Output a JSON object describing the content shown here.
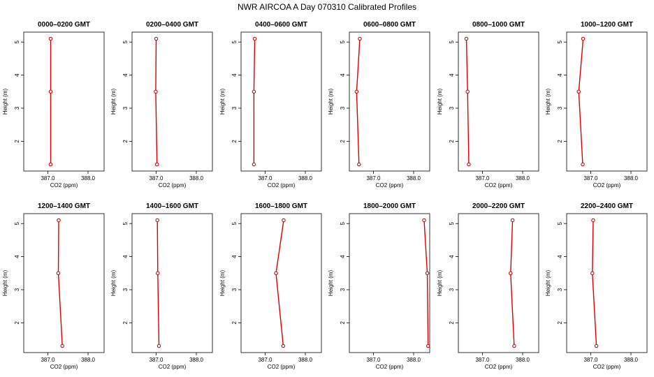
{
  "figure": {
    "title": "NWR AIRCOA A  Day 070310  Calibrated Profiles"
  },
  "chart_data": [
    {
      "type": "line",
      "title": "0000–0200 GMT",
      "xlabel": "CO2 (ppm)",
      "ylabel": "Height (m)",
      "xlim": [
        386.4,
        388.4
      ],
      "ylim": [
        1.1,
        5.3
      ],
      "xticks": [
        "387.0",
        "388.0"
      ],
      "yticks": [
        "2",
        "3",
        "4",
        "5"
      ],
      "grid": false,
      "series": [
        {
          "x": [
            387.07,
            387.07,
            387.07
          ],
          "y": [
            1.3,
            3.5,
            5.1
          ]
        }
      ]
    },
    {
      "type": "line",
      "title": "0200–0400 GMT",
      "xlabel": "CO2 (ppm)",
      "ylabel": "Height (m)",
      "xlim": [
        386.4,
        388.4
      ],
      "ylim": [
        1.1,
        5.3
      ],
      "xticks": [
        "387.0",
        "388.0"
      ],
      "yticks": [
        "2",
        "3",
        "4",
        "5"
      ],
      "grid": false,
      "series": [
        {
          "x": [
            387.02,
            386.99,
            387.0
          ],
          "y": [
            1.3,
            3.5,
            5.1
          ]
        }
      ]
    },
    {
      "type": "line",
      "title": "0400–0600 GMT",
      "xlabel": "CO2 (ppm)",
      "ylabel": "Height (m)",
      "xlim": [
        386.4,
        388.4
      ],
      "ylim": [
        1.1,
        5.3
      ],
      "xticks": [
        "387.0",
        "388.0"
      ],
      "yticks": [
        "2",
        "3",
        "4",
        "5"
      ],
      "grid": false,
      "series": [
        {
          "x": [
            386.72,
            386.72,
            386.74
          ],
          "y": [
            1.3,
            3.5,
            5.1
          ]
        }
      ]
    },
    {
      "type": "line",
      "title": "0600–0800 GMT",
      "xlabel": "CO2 (ppm)",
      "ylabel": "Height (m)",
      "xlim": [
        386.4,
        388.4
      ],
      "ylim": [
        1.1,
        5.3
      ],
      "xticks": [
        "387.0",
        "388.0"
      ],
      "yticks": [
        "2",
        "3",
        "4",
        "5"
      ],
      "grid": false,
      "series": [
        {
          "x": [
            386.64,
            386.58,
            386.66
          ],
          "y": [
            1.3,
            3.5,
            5.1
          ]
        }
      ]
    },
    {
      "type": "line",
      "title": "0800–1000 GMT",
      "xlabel": "CO2 (ppm)",
      "ylabel": "Height (m)",
      "xlim": [
        386.4,
        388.4
      ],
      "ylim": [
        1.1,
        5.3
      ],
      "xticks": [
        "387.0",
        "388.0"
      ],
      "yticks": [
        "2",
        "3",
        "4",
        "5"
      ],
      "grid": false,
      "series": [
        {
          "x": [
            386.66,
            386.63,
            386.6
          ],
          "y": [
            1.3,
            3.5,
            5.1
          ]
        }
      ]
    },
    {
      "type": "line",
      "title": "1000–1200 GMT",
      "xlabel": "CO2 (ppm)",
      "ylabel": "Height (m)",
      "xlim": [
        386.4,
        388.4
      ],
      "ylim": [
        1.1,
        5.3
      ],
      "xticks": [
        "387.0",
        "388.0"
      ],
      "yticks": [
        "2",
        "3",
        "4",
        "5"
      ],
      "grid": false,
      "series": [
        {
          "x": [
            386.8,
            386.7,
            386.81
          ],
          "y": [
            1.3,
            3.5,
            5.1
          ]
        }
      ]
    },
    {
      "type": "line",
      "title": "1200–1400 GMT",
      "xlabel": "CO2 (ppm)",
      "ylabel": "Height (m)",
      "xlim": [
        386.4,
        388.4
      ],
      "ylim": [
        1.1,
        5.3
      ],
      "xticks": [
        "387.0",
        "388.0"
      ],
      "yticks": [
        "2",
        "3",
        "4",
        "5"
      ],
      "grid": false,
      "series": [
        {
          "x": [
            387.36,
            387.26,
            387.27
          ],
          "y": [
            1.3,
            3.5,
            5.1
          ]
        }
      ]
    },
    {
      "type": "line",
      "title": "1400–1600 GMT",
      "xlabel": "CO2 (ppm)",
      "ylabel": "Height (m)",
      "xlim": [
        386.4,
        388.4
      ],
      "ylim": [
        1.1,
        5.3
      ],
      "xticks": [
        "387.0",
        "388.0"
      ],
      "yticks": [
        "2",
        "3",
        "4",
        "5"
      ],
      "grid": false,
      "series": [
        {
          "x": [
            387.07,
            387.04,
            387.03
          ],
          "y": [
            1.3,
            3.5,
            5.1
          ]
        }
      ]
    },
    {
      "type": "line",
      "title": "1600–1800 GMT",
      "xlabel": "CO2 (ppm)",
      "ylabel": "Height (m)",
      "xlim": [
        386.4,
        388.4
      ],
      "ylim": [
        1.1,
        5.3
      ],
      "xticks": [
        "387.0",
        "388.0"
      ],
      "yticks": [
        "2",
        "3",
        "4",
        "5"
      ],
      "grid": false,
      "series": [
        {
          "x": [
            387.45,
            387.27,
            387.46
          ],
          "y": [
            1.3,
            3.5,
            5.1
          ]
        }
      ]
    },
    {
      "type": "line",
      "title": "1800–2000 GMT",
      "xlabel": "CO2 (ppm)",
      "ylabel": "Height (m)",
      "xlim": [
        386.4,
        388.4
      ],
      "ylim": [
        1.1,
        5.3
      ],
      "xticks": [
        "387.0",
        "388.0"
      ],
      "yticks": [
        "2",
        "3",
        "4",
        "5"
      ],
      "grid": false,
      "series": [
        {
          "x": [
            388.36,
            388.34,
            388.26
          ],
          "y": [
            1.3,
            3.5,
            5.1
          ]
        }
      ]
    },
    {
      "type": "line",
      "title": "2000–2200 GMT",
      "xlabel": "CO2 (ppm)",
      "ylabel": "Height (m)",
      "xlim": [
        386.4,
        388.4
      ],
      "ylim": [
        1.1,
        5.3
      ],
      "xticks": [
        "387.0",
        "388.0"
      ],
      "yticks": [
        "2",
        "3",
        "4",
        "5"
      ],
      "grid": false,
      "series": [
        {
          "x": [
            387.79,
            387.7,
            387.75
          ],
          "y": [
            1.3,
            3.5,
            5.1
          ]
        }
      ]
    },
    {
      "type": "line",
      "title": "2200–2400 GMT",
      "xlabel": "CO2 (ppm)",
      "ylabel": "Height (m)",
      "xlim": [
        386.4,
        388.4
      ],
      "ylim": [
        1.1,
        5.3
      ],
      "xticks": [
        "387.0",
        "388.0"
      ],
      "yticks": [
        "2",
        "3",
        "4",
        "5"
      ],
      "grid": false,
      "series": [
        {
          "x": [
            387.14,
            387.04,
            387.06
          ],
          "y": [
            1.3,
            3.5,
            5.1
          ]
        }
      ]
    }
  ]
}
